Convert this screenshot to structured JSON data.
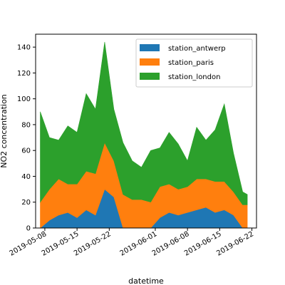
{
  "chart_data": {
    "type": "area",
    "stacked": true,
    "xlabel": "datetime",
    "ylabel": "NO2 concentration",
    "x_range": [
      "2019-05-06",
      "2019-06-23"
    ],
    "ylim": [
      0,
      150
    ],
    "yticks": [
      0,
      20,
      40,
      60,
      80,
      100,
      120,
      140
    ],
    "xticks": [
      "2019-05-08",
      "2019-05-15",
      "2019-05-22",
      "2019-06-01",
      "2019-06-08",
      "2019-06-15",
      "2019-06-22"
    ],
    "grid": false,
    "legend_position": "top-right",
    "series": [
      {
        "name": "station_antwerp",
        "color": "#1f77b4",
        "x": [
          "2019-05-07",
          "2019-05-09",
          "2019-05-11",
          "2019-05-13",
          "2019-05-15",
          "2019-05-17",
          "2019-05-19",
          "2019-05-21",
          "2019-05-23",
          "2019-05-25",
          "2019-05-27",
          "2019-05-29",
          "2019-05-31",
          "2019-06-02",
          "2019-06-04",
          "2019-06-06",
          "2019-06-08",
          "2019-06-10",
          "2019-06-12",
          "2019-06-14",
          "2019-06-16",
          "2019-06-18",
          "2019-06-20",
          "2019-06-21"
        ],
        "values": [
          0,
          6,
          10,
          12,
          8,
          14,
          10,
          30,
          24,
          0,
          0,
          0,
          0,
          8,
          12,
          10,
          12,
          14,
          16,
          12,
          14,
          10,
          0,
          0
        ]
      },
      {
        "name": "station_paris",
        "color": "#ff7f0e",
        "x": [
          "2019-05-07",
          "2019-05-09",
          "2019-05-11",
          "2019-05-13",
          "2019-05-15",
          "2019-05-17",
          "2019-05-19",
          "2019-05-21",
          "2019-05-23",
          "2019-05-25",
          "2019-05-27",
          "2019-05-29",
          "2019-05-31",
          "2019-06-02",
          "2019-06-04",
          "2019-06-06",
          "2019-06-08",
          "2019-06-10",
          "2019-06-12",
          "2019-06-14",
          "2019-06-16",
          "2019-06-18",
          "2019-06-20",
          "2019-06-21"
        ],
        "values": [
          20,
          24,
          28,
          22,
          26,
          30,
          32,
          36,
          28,
          26,
          22,
          22,
          20,
          24,
          22,
          20,
          20,
          24,
          22,
          24,
          22,
          18,
          18,
          18
        ]
      },
      {
        "name": "station_london",
        "color": "#2ca02c",
        "x": [
          "2019-05-07",
          "2019-05-09",
          "2019-05-11",
          "2019-05-13",
          "2019-05-15",
          "2019-05-17",
          "2019-05-19",
          "2019-05-21",
          "2019-05-23",
          "2019-05-25",
          "2019-05-27",
          "2019-05-29",
          "2019-05-31",
          "2019-06-02",
          "2019-06-04",
          "2019-06-06",
          "2019-06-08",
          "2019-06-10",
          "2019-06-12",
          "2019-06-14",
          "2019-06-16",
          "2019-06-18",
          "2019-06-20",
          "2019-06-21"
        ],
        "values": [
          70,
          40,
          30,
          45,
          40,
          60,
          50,
          78,
          40,
          40,
          30,
          25,
          40,
          30,
          40,
          35,
          20,
          40,
          30,
          40,
          60,
          30,
          10,
          8
        ]
      }
    ]
  }
}
